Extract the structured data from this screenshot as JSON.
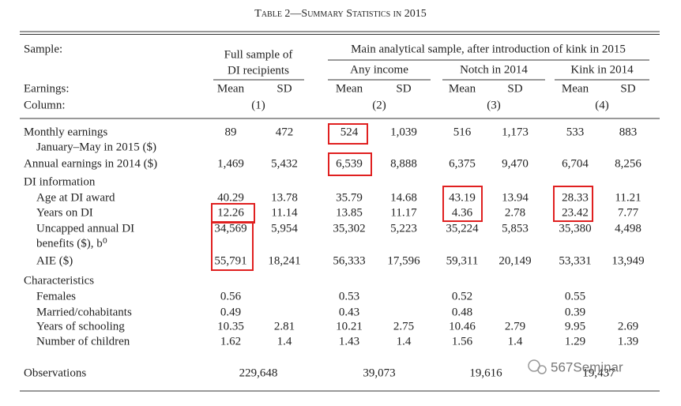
{
  "title": "Table 2—Summary Statistics in 2015",
  "header": {
    "sample_label": "Sample:",
    "full_sample": [
      "Full sample of",
      "DI recipients"
    ],
    "main_sample": "Main analytical sample, after introduction of kink in 2015",
    "groups": [
      "Any income",
      "Notch in 2014",
      "Kink in 2014"
    ],
    "earnings_label": "Earnings:",
    "stats": [
      "Mean",
      "SD"
    ],
    "column_label": "Column:",
    "columns": [
      "(1)",
      "(2)",
      "(3)",
      "(4)"
    ]
  },
  "rows": [
    {
      "label": [
        "Monthly earnings",
        "January–May in 2015 ($)"
      ],
      "values": [
        "89",
        "472",
        "524",
        "1,039",
        "516",
        "1,173",
        "533",
        "883"
      ]
    },
    {
      "label": [
        "Annual earnings in 2014 ($)"
      ],
      "values": [
        "1,469",
        "5,432",
        "6,539",
        "8,888",
        "6,375",
        "9,470",
        "6,704",
        "8,256"
      ]
    },
    {
      "section": "DI information"
    },
    {
      "label": [
        "Age at DI award"
      ],
      "values": [
        "40.29",
        "13.78",
        "35.79",
        "14.68",
        "43.19",
        "13.94",
        "28.33",
        "11.21"
      ]
    },
    {
      "label": [
        "Years on DI"
      ],
      "values": [
        "12.26",
        "11.14",
        "13.85",
        "11.17",
        "4.36",
        "2.78",
        "23.42",
        "7.77"
      ]
    },
    {
      "label": [
        "Uncapped annual DI",
        "benefits ($), b⁰"
      ],
      "values": [
        "34,569",
        "5,954",
        "35,302",
        "5,223",
        "35,224",
        "5,853",
        "35,380",
        "4,498"
      ]
    },
    {
      "label": [
        "AIE ($)"
      ],
      "values": [
        "55,791",
        "18,241",
        "56,333",
        "17,596",
        "59,311",
        "20,149",
        "53,331",
        "13,949"
      ]
    },
    {
      "section": "Characteristics"
    },
    {
      "label": [
        "Females"
      ],
      "values": [
        "0.56",
        null,
        "0.53",
        null,
        "0.52",
        null,
        "0.55",
        null
      ]
    },
    {
      "label": [
        "Married/cohabitants"
      ],
      "values": [
        "0.49",
        null,
        "0.43",
        null,
        "0.48",
        null,
        "0.39",
        null
      ]
    },
    {
      "label": [
        "Years of schooling"
      ],
      "values": [
        "10.35",
        "2.81",
        "10.21",
        "2.75",
        "10.46",
        "2.79",
        "9.95",
        "2.69"
      ]
    },
    {
      "label": [
        "Number of children"
      ],
      "values": [
        "1.62",
        "1.4",
        "1.43",
        "1.4",
        "1.56",
        "1.4",
        "1.29",
        "1.39"
      ]
    }
  ],
  "observations": {
    "label": "Observations",
    "values": [
      "229,648",
      "39,073",
      "19,616",
      "19,437"
    ]
  },
  "watermark": "567Seminar"
}
